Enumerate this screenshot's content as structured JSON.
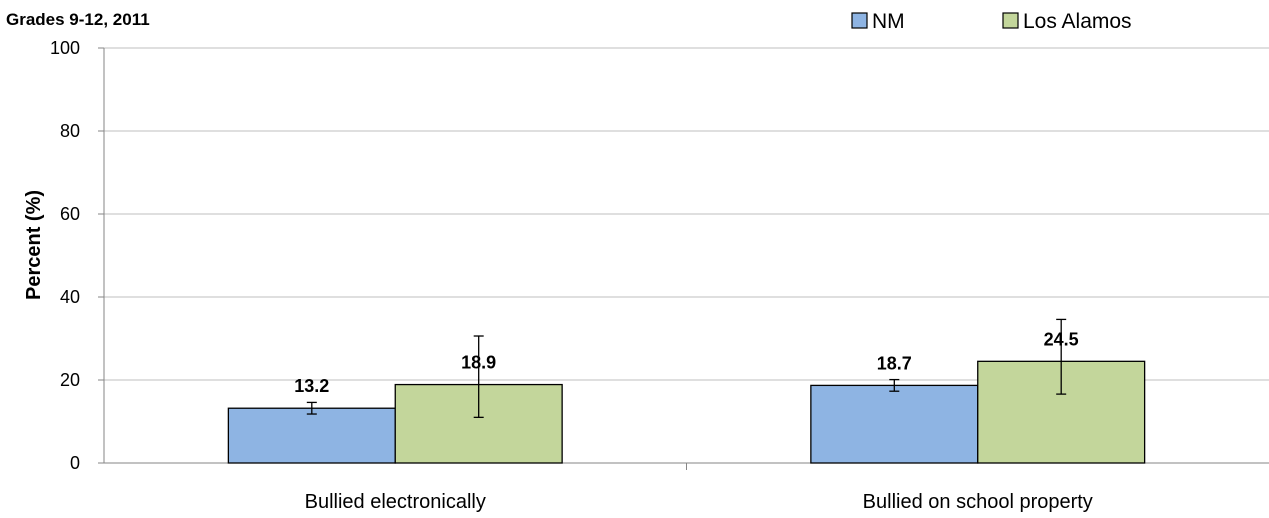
{
  "chart_data": {
    "type": "bar",
    "title": "",
    "subtitle": "Grades 9-12, 2011",
    "xlabel": "",
    "ylabel": "Percent (%)",
    "ylim": [
      0,
      100
    ],
    "yticks": [
      0,
      20,
      40,
      60,
      80,
      100
    ],
    "grid": true,
    "legend_position": "top-right",
    "categories": [
      "Bullied electronically",
      "Bullied on school property"
    ],
    "series": [
      {
        "name": "NM",
        "color": "#8eb4e3",
        "values": [
          13.2,
          18.7
        ],
        "value_labels": [
          "13.2",
          "18.7"
        ],
        "error_low": [
          11.8,
          17.3
        ],
        "error_high": [
          14.6,
          20.1
        ]
      },
      {
        "name": "Los Alamos",
        "color": "#c3d69b",
        "values": [
          18.9,
          24.5
        ],
        "value_labels": [
          "18.9",
          "24.5"
        ],
        "error_low": [
          11.0,
          16.6
        ],
        "error_high": [
          30.6,
          34.6
        ]
      }
    ]
  }
}
